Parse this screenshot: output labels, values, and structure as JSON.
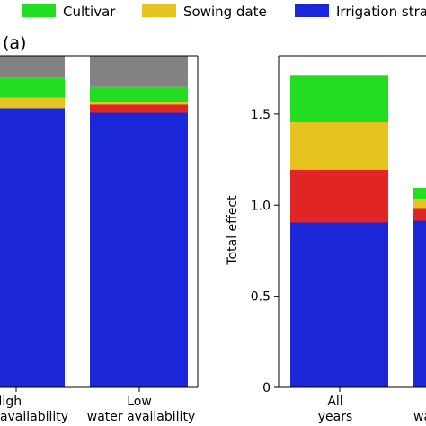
{
  "legend": [
    {
      "label": "Cultivar",
      "color": "#22dd22"
    },
    {
      "label": "Sowing date",
      "color": "#e6c31e"
    },
    {
      "label": "Irrigation stra",
      "color": "#1c27d9"
    }
  ],
  "chart_data": [
    {
      "type": "bar",
      "stacked": true,
      "panel_label": "(a)",
      "categories": [
        {
          "line1": "High",
          "line2": "availability"
        },
        {
          "line1": "Low",
          "line2": "water availability"
        }
      ],
      "ylim": [
        0,
        1.0
      ],
      "series": [
        {
          "name": "Irrigation stra",
          "color": "#1c27d9",
          "values": [
            0.842,
            0.828
          ]
        },
        {
          "name": "",
          "color": "#e12424",
          "values": [
            0.0,
            0.025
          ]
        },
        {
          "name": "Sowing date",
          "color": "#e6c31e",
          "values": [
            0.032,
            0.008
          ]
        },
        {
          "name": "Cultivar",
          "color": "#22dd22",
          "values": [
            0.06,
            0.045
          ]
        },
        {
          "name": "",
          "color": "#828282",
          "values": [
            0.066,
            0.094
          ]
        }
      ]
    },
    {
      "type": "bar",
      "stacked": true,
      "categories": [
        {
          "line1": "All",
          "line2": "years"
        },
        {
          "line1": "",
          "line2": "wa"
        }
      ],
      "ylabel": "Total effect",
      "ylim": [
        0,
        1.82
      ],
      "yticks": [
        "0",
        "0.5",
        "1.0",
        "1.5"
      ],
      "ytick_values": [
        0,
        0.5,
        1.0,
        1.5
      ],
      "series": [
        {
          "name": "Irrigation stra",
          "color": "#1c27d9",
          "values": [
            0.905,
            0.915
          ]
        },
        {
          "name": "",
          "color": "#e12424",
          "values": [
            0.29,
            0.07
          ]
        },
        {
          "name": "Sowing date",
          "color": "#e6c31e",
          "values": [
            0.26,
            0.05
          ]
        },
        {
          "name": "Cultivar",
          "color": "#22dd22",
          "values": [
            0.255,
            0.06
          ]
        }
      ]
    }
  ]
}
